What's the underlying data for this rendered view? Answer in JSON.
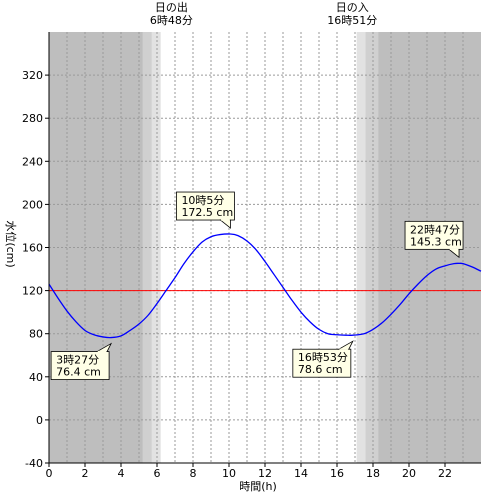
{
  "chart_data": {
    "type": "line",
    "xlabel": "時間(h)",
    "ylabel": "水位(cm)",
    "xlim": [
      0,
      24
    ],
    "ylim": [
      -40,
      360
    ],
    "x_ticks": [
      "0",
      "2",
      "4",
      "6",
      "8",
      "10",
      "12",
      "14",
      "16",
      "18",
      "20",
      "22"
    ],
    "y_ticks": [
      "-40",
      "0",
      "40",
      "80",
      "120",
      "160",
      "200",
      "240",
      "280",
      "320"
    ],
    "reference_line": {
      "value": 120,
      "color": "#ff0000"
    },
    "sunrise": {
      "time": 6.8,
      "label_top": "日の出",
      "label_bottom": "6時48分"
    },
    "sunset": {
      "time": 16.85,
      "label_top": "日の入",
      "label_bottom": "16時51分"
    },
    "twilight_bands": [
      [
        5.2,
        5.7
      ],
      [
        5.7,
        6.2
      ],
      [
        17.1,
        17.6
      ],
      [
        17.6,
        18.3
      ]
    ],
    "series": [
      {
        "color": "#0000ff",
        "x": [
          0,
          0.5,
          1,
          1.5,
          2,
          2.5,
          3,
          3.45,
          4,
          4.5,
          5,
          5.5,
          6,
          6.5,
          7,
          7.5,
          8,
          8.5,
          9,
          9.5,
          10.08,
          10.5,
          11,
          11.5,
          12,
          12.5,
          13,
          13.5,
          14,
          14.5,
          15,
          15.5,
          16,
          16.5,
          16.88,
          17.5,
          18,
          18.5,
          19,
          19.5,
          20,
          20.5,
          21,
          21.5,
          22,
          22.5,
          22.78,
          23,
          23.5,
          24
        ],
        "values": [
          126,
          113,
          101,
          91,
          83,
          79,
          77,
          76.4,
          78,
          83,
          89,
          97,
          108,
          120,
          132,
          145,
          156,
          165,
          170,
          172,
          172.5,
          171,
          166,
          158,
          147,
          135,
          123,
          111,
          100,
          91,
          84,
          80,
          79,
          78.6,
          78.6,
          80,
          84,
          90,
          98,
          107,
          117,
          126,
          134,
          140,
          143,
          145,
          145.3,
          145,
          142,
          138
        ]
      }
    ],
    "annotations": [
      {
        "x": 3.45,
        "y": 76.4,
        "time": "3時27分",
        "value": "76.4 cm"
      },
      {
        "x": 10.08,
        "y": 172.5,
        "time": "10時5分",
        "value": "172.5 cm"
      },
      {
        "x": 16.88,
        "y": 78.6,
        "time": "16時53分",
        "value": "78.6 cm"
      },
      {
        "x": 22.78,
        "y": 145.3,
        "time": "22時47分",
        "value": "145.3 cm"
      }
    ]
  },
  "colors": {
    "night": "#bebebe",
    "twilight_dark": "#d0d0d0",
    "twilight_light": "#e2e2e2",
    "day": "#ffffff",
    "grid": "#9a9a9a",
    "callout_bg": "#ffffe6"
  }
}
